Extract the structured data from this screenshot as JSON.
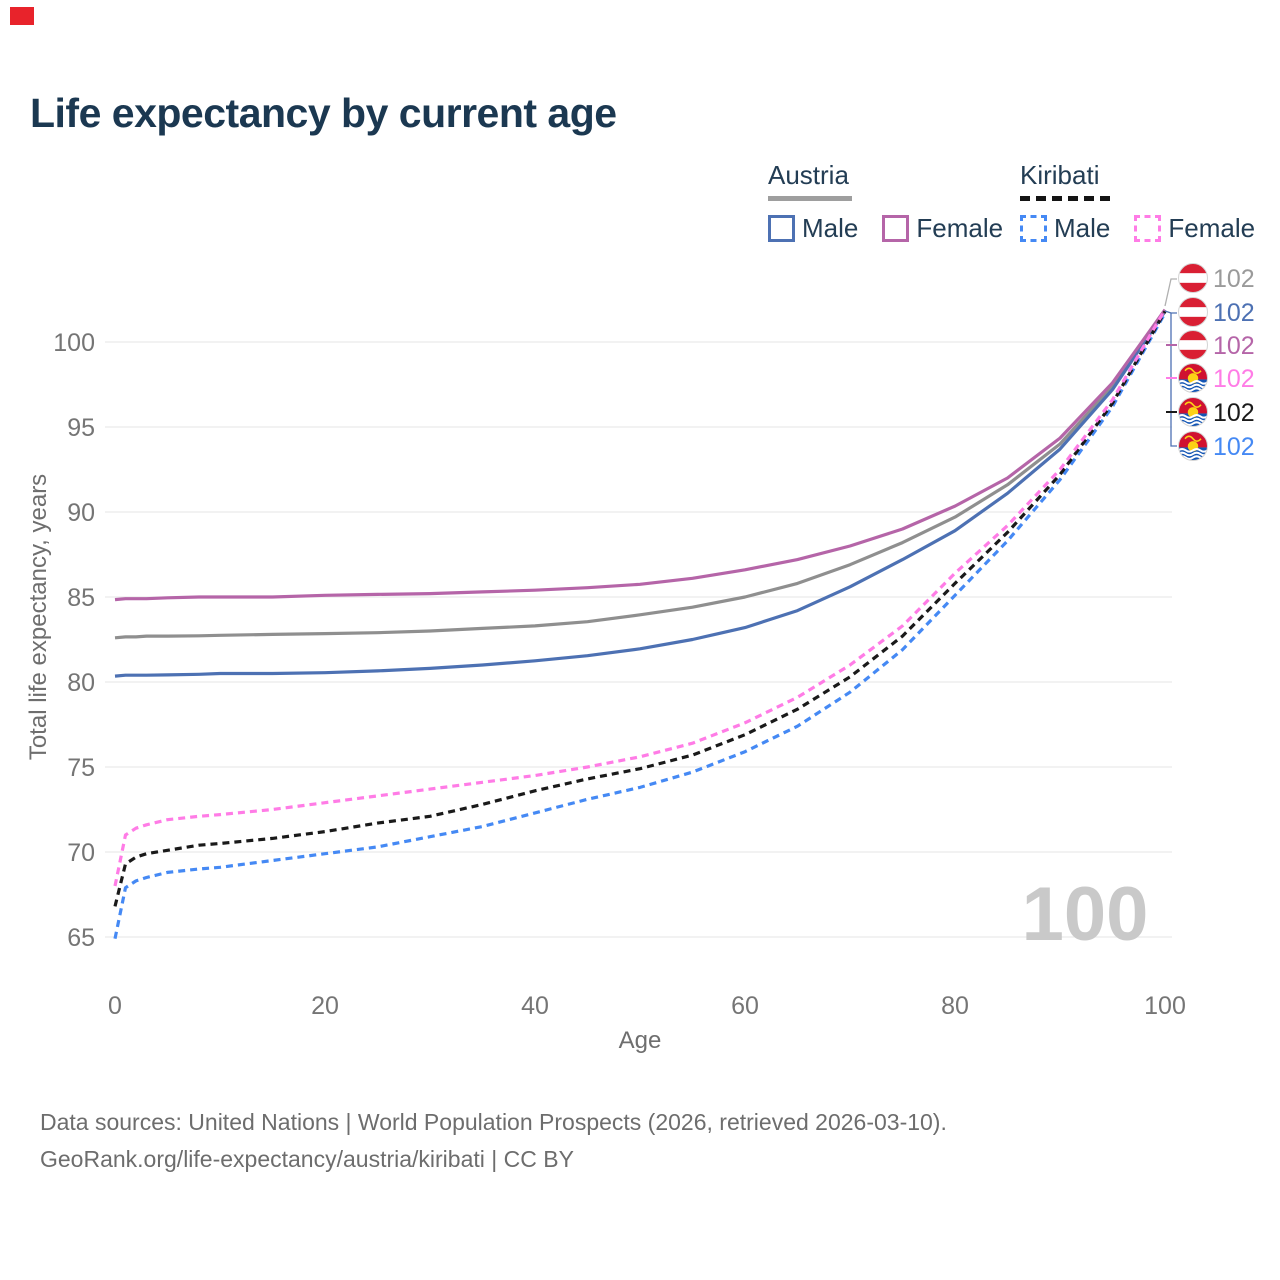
{
  "marker_color": "#e8232b",
  "header": {
    "title": "Life expectancy by current age"
  },
  "legend": {
    "groups": [
      {
        "name": "Austria",
        "line_style": "solid",
        "underline_color": "#9e9e9e",
        "items": [
          {
            "label": "Male",
            "color": "#4d71b3",
            "dash": false
          },
          {
            "label": "Female",
            "color": "#b565a8",
            "dash": false
          }
        ]
      },
      {
        "name": "Kiribati",
        "line_style": "dashed",
        "underline_color": "#141414",
        "items": [
          {
            "label": "Male",
            "color": "#4589f4",
            "dash": true
          },
          {
            "label": "Female",
            "color": "#ff7ce6",
            "dash": true
          }
        ]
      }
    ]
  },
  "chart_data": {
    "type": "line",
    "title": "Life expectancy by current age",
    "xlabel": "Age",
    "ylabel": "Total life expectancy, years",
    "x_ticks": [
      0,
      20,
      40,
      60,
      80,
      100
    ],
    "y_ticks": [
      65,
      70,
      75,
      80,
      85,
      90,
      95,
      100
    ],
    "xlim": [
      0,
      100
    ],
    "ylim": [
      63,
      104
    ],
    "grid": "horizontal-only",
    "legend_position": "top-right",
    "watermark": "100",
    "x": [
      0,
      1,
      2,
      3,
      5,
      8,
      10,
      15,
      20,
      25,
      30,
      35,
      40,
      45,
      50,
      55,
      60,
      65,
      70,
      75,
      80,
      85,
      90,
      95,
      100
    ],
    "series": [
      {
        "name": "Austria",
        "color": "#8f8f8f",
        "dash": false,
        "values": [
          82.6,
          82.65,
          82.65,
          82.7,
          82.7,
          82.72,
          82.75,
          82.8,
          82.85,
          82.9,
          83.0,
          83.15,
          83.3,
          83.55,
          83.95,
          84.4,
          85.0,
          85.8,
          86.9,
          88.2,
          89.7,
          91.6,
          94.0,
          97.4,
          101.85
        ]
      },
      {
        "name": "Austria Male",
        "color": "#4d71b3",
        "dash": false,
        "values": [
          80.35,
          80.4,
          80.4,
          80.4,
          80.42,
          80.45,
          80.5,
          80.5,
          80.55,
          80.65,
          80.8,
          81.0,
          81.25,
          81.55,
          81.95,
          82.5,
          83.2,
          84.2,
          85.6,
          87.2,
          88.9,
          91.1,
          93.7,
          97.2,
          101.8
        ]
      },
      {
        "name": "Austria Female",
        "color": "#b565a8",
        "dash": false,
        "values": [
          84.85,
          84.9,
          84.9,
          84.9,
          84.95,
          85.0,
          85.0,
          85.0,
          85.1,
          85.15,
          85.2,
          85.3,
          85.4,
          85.55,
          85.75,
          86.1,
          86.6,
          87.2,
          88.0,
          89.0,
          90.35,
          92.0,
          94.35,
          97.6,
          101.9
        ]
      },
      {
        "name": "Kiribati Male",
        "color": "#4589f4",
        "dash": true,
        "values": [
          64.9,
          67.9,
          68.3,
          68.5,
          68.8,
          69.0,
          69.1,
          69.5,
          69.9,
          70.3,
          70.9,
          71.5,
          72.3,
          73.1,
          73.8,
          74.7,
          75.9,
          77.4,
          79.4,
          81.9,
          85.1,
          88.3,
          91.9,
          96.2,
          101.7
        ]
      },
      {
        "name": "Kiribati",
        "color": "#1a1a1a",
        "dash": true,
        "values": [
          66.8,
          69.3,
          69.7,
          69.9,
          70.1,
          70.4,
          70.5,
          70.8,
          71.2,
          71.7,
          72.1,
          72.8,
          73.6,
          74.3,
          74.9,
          75.7,
          76.9,
          78.4,
          80.3,
          82.7,
          85.8,
          88.8,
          92.2,
          96.4,
          101.8
        ]
      },
      {
        "name": "Kiribati Female",
        "color": "#ff7ce6",
        "dash": true,
        "values": [
          68.0,
          71.0,
          71.4,
          71.6,
          71.9,
          72.1,
          72.2,
          72.5,
          72.9,
          73.3,
          73.7,
          74.1,
          74.5,
          75.0,
          75.6,
          76.4,
          77.6,
          79.1,
          81.0,
          83.3,
          86.4,
          89.2,
          92.5,
          96.6,
          101.9
        ]
      }
    ],
    "end_labels": [
      {
        "flag": "austria",
        "value": "102",
        "color": "#9a9a9a"
      },
      {
        "flag": "austria",
        "value": "102",
        "color": "#4d71b3"
      },
      {
        "flag": "austria",
        "value": "102",
        "color": "#b565a8"
      },
      {
        "flag": "kiribati",
        "value": "102",
        "color": "#ff7ce6"
      },
      {
        "flag": "kiribati",
        "value": "102",
        "color": "#1a1a1a"
      },
      {
        "flag": "kiribati",
        "value": "102",
        "color": "#4589f4"
      }
    ]
  },
  "footer": {
    "line1": "Data sources: United Nations | World Population Prospects (2026, retrieved 2026-03-10).",
    "line2": "GeoRank.org/life-expectancy/austria/kiribati | CC BY"
  }
}
